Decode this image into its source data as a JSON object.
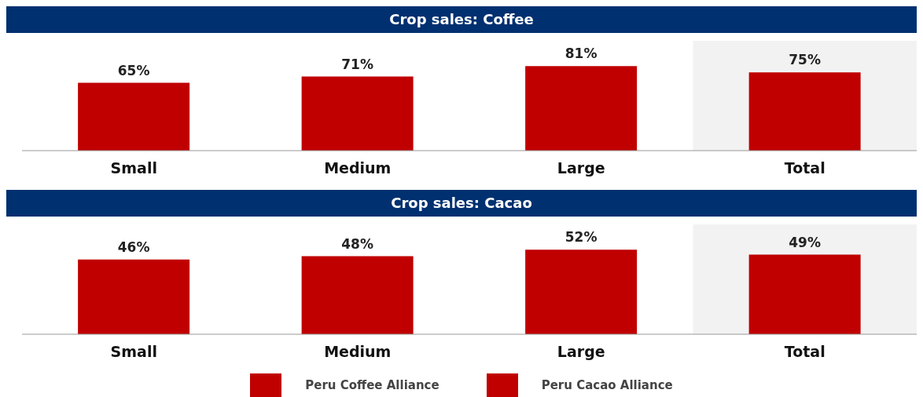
{
  "chart_data": [
    {
      "type": "bar",
      "title": "Crop sales: Coffee",
      "categories": [
        "Small",
        "Medium",
        "Large",
        "Total"
      ],
      "series": [
        {
          "name": "Peru Coffee Alliance",
          "color": "#c00000",
          "values": [
            65,
            71,
            81,
            75
          ],
          "value_labels": [
            "65%",
            "71%",
            "81%",
            "75%"
          ]
        }
      ],
      "bands": [
        {
          "axis": "x",
          "from": "Total",
          "to": "Total",
          "color": "#f2f2f2"
        }
      ],
      "legend": "bottom"
    },
    {
      "type": "bar",
      "title": "Crop sales: Cacao",
      "categories": [
        "Small",
        "Medium",
        "Large",
        "Total"
      ],
      "series": [
        {
          "name": "Peru Cacao Alliance",
          "color": "#c00000",
          "values": [
            46,
            48,
            52,
            49
          ],
          "value_labels": [
            "46%",
            "48%",
            "52%",
            "49%"
          ]
        }
      ],
      "bands": [
        {
          "axis": "x",
          "from": "Total",
          "to": "Total",
          "color": "#f2f2f2"
        }
      ],
      "legend": "bottom"
    }
  ]
}
